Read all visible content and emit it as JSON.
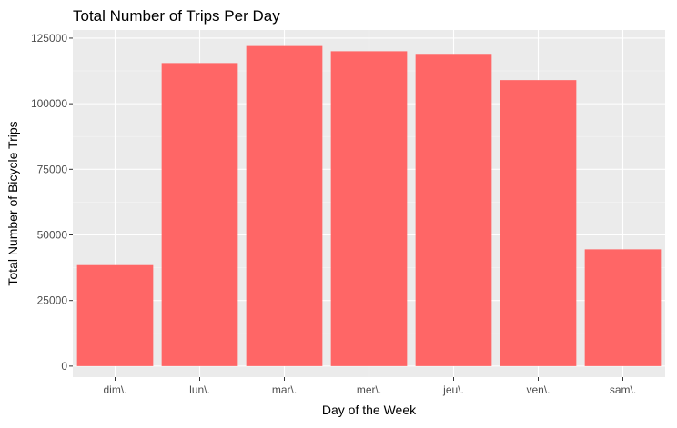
{
  "chart_data": {
    "type": "bar",
    "title": "Total Number of Trips Per Day",
    "xlabel": "Day of the Week",
    "ylabel": "Total Number of Bicycle Trips",
    "categories": [
      "dim\\.",
      "lun\\.",
      "mar\\.",
      "mer\\.",
      "jeu\\.",
      "ven\\.",
      "sam\\."
    ],
    "values": [
      38500,
      115500,
      122000,
      120000,
      119000,
      109000,
      44500
    ],
    "yticks": [
      0,
      25000,
      50000,
      75000,
      100000,
      125000
    ],
    "ytick_labels": [
      "0",
      "25000",
      "50000",
      "75000",
      "100000",
      "125000"
    ],
    "ylim": [
      -4200,
      128100
    ],
    "grid": true,
    "legend": "none",
    "colors": {
      "bar": "#ff6666",
      "panel": "#ebebeb",
      "grid_major": "#ffffff",
      "grid_minor": "#f5f5f5"
    }
  }
}
